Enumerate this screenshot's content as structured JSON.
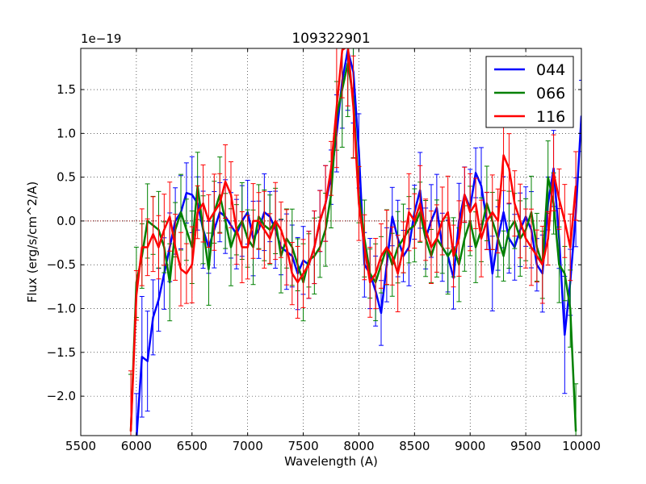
{
  "chart_data": {
    "type": "line",
    "title": "109322901",
    "xlabel": "Wavelength (A)",
    "ylabel": "Flux (erg/s/cm^2/A)",
    "offset_text": "1e−19",
    "xlim": [
      5500,
      10000
    ],
    "ylim": [
      -2.45,
      1.97
    ],
    "x_ticks": [
      5500,
      6000,
      6500,
      7000,
      7500,
      8000,
      8500,
      9000,
      9500,
      10000
    ],
    "x_tick_labels": [
      "5500",
      "6000",
      "6500",
      "7000",
      "7500",
      "8000",
      "8500",
      "9000",
      "9500",
      "10000"
    ],
    "y_ticks": [
      -2.0,
      -1.5,
      -1.0,
      -0.5,
      0.0,
      0.5,
      1.0,
      1.5
    ],
    "y_tick_labels": [
      "−2.0",
      "−1.5",
      "−1.0",
      "−0.5",
      "0.0",
      "0.5",
      "1.0",
      "1.5"
    ],
    "grid": true,
    "zero_line": 0.0,
    "legend_position": "top-right",
    "series": [
      {
        "name": "044",
        "color": "#0000ff",
        "x": [
          6000,
          6050,
          6100,
          6150,
          6200,
          6250,
          6300,
          6350,
          6400,
          6450,
          6500,
          6550,
          6600,
          6650,
          6700,
          6750,
          6800,
          6850,
          6900,
          6950,
          7000,
          7050,
          7100,
          7150,
          7200,
          7250,
          7300,
          7350,
          7400,
          7450,
          7500,
          7550,
          7600,
          7650,
          7700,
          7750,
          7800,
          7850,
          7900,
          7950,
          8000,
          8050,
          8100,
          8150,
          8200,
          8250,
          8300,
          8350,
          8400,
          8450,
          8500,
          8550,
          8600,
          8650,
          8700,
          8750,
          8800,
          8850,
          8900,
          8950,
          9000,
          9050,
          9100,
          9150,
          9200,
          9250,
          9300,
          9350,
          9400,
          9450,
          9500,
          9550,
          9600,
          9650,
          9700,
          9750,
          9800,
          9850,
          9900,
          9950,
          10000
        ],
        "y": [
          -2.5,
          -1.55,
          -1.6,
          -1.1,
          -0.9,
          -0.6,
          -0.3,
          0.0,
          0.1,
          0.32,
          0.3,
          0.2,
          -0.1,
          -0.3,
          -0.1,
          0.1,
          0.05,
          -0.05,
          -0.15,
          0.0,
          0.1,
          -0.2,
          -0.1,
          0.1,
          0.05,
          -0.1,
          -0.3,
          -0.35,
          -0.4,
          -0.6,
          -0.45,
          -0.5,
          -0.3,
          0.0,
          0.2,
          0.5,
          1.0,
          1.6,
          1.95,
          1.7,
          0.8,
          -0.5,
          -0.6,
          -0.8,
          -1.05,
          -0.5,
          0.05,
          -0.2,
          -0.4,
          -0.3,
          0.1,
          0.35,
          -0.2,
          0.0,
          0.15,
          -0.3,
          -0.4,
          -0.65,
          0.0,
          0.3,
          0.15,
          0.55,
          0.4,
          0.0,
          -0.6,
          -0.2,
          0.1,
          -0.2,
          -0.3,
          -0.1,
          0.05,
          -0.1,
          -0.5,
          -0.6,
          0.2,
          0.6,
          -0.2,
          -1.3,
          -0.7,
          0.1,
          1.2
        ]
      },
      {
        "name": "066",
        "color": "#008000",
        "x": [
          5950,
          6000,
          6050,
          6100,
          6150,
          6200,
          6250,
          6300,
          6350,
          6400,
          6450,
          6500,
          6550,
          6600,
          6650,
          6700,
          6750,
          6800,
          6850,
          6900,
          6950,
          7000,
          7050,
          7100,
          7150,
          7200,
          7250,
          7300,
          7350,
          7400,
          7450,
          7500,
          7550,
          7600,
          7650,
          7700,
          7750,
          7800,
          7850,
          7900,
          7950,
          8000,
          8050,
          8100,
          8150,
          8200,
          8250,
          8300,
          8350,
          8400,
          8450,
          8500,
          8550,
          8600,
          8650,
          8700,
          8750,
          8800,
          8850,
          8900,
          8950,
          9000,
          9050,
          9100,
          9150,
          9200,
          9250,
          9300,
          9350,
          9400,
          9450,
          9500,
          9550,
          9600,
          9650,
          9700,
          9750,
          9800,
          9850,
          9900,
          9950
        ],
        "y": [
          -2.4,
          -0.7,
          -0.4,
          0.0,
          -0.05,
          -0.1,
          -0.3,
          -0.7,
          -0.1,
          0.1,
          -0.1,
          -0.3,
          0.4,
          -0.1,
          -0.55,
          0.1,
          0.3,
          0.0,
          -0.3,
          -0.1,
          0.0,
          -0.2,
          -0.3,
          0.05,
          -0.05,
          -0.1,
          0.0,
          -0.4,
          -0.2,
          -0.3,
          -0.5,
          -0.7,
          -0.45,
          -0.4,
          -0.3,
          -0.1,
          0.3,
          1.2,
          1.5,
          1.8,
          1.4,
          0.3,
          -0.2,
          -0.6,
          -0.7,
          -0.5,
          -0.3,
          -0.5,
          -0.3,
          -0.2,
          -0.1,
          -0.05,
          0.1,
          -0.2,
          -0.4,
          -0.2,
          -0.3,
          -0.4,
          -0.3,
          -0.5,
          -0.2,
          0.0,
          -0.3,
          -0.1,
          0.2,
          0.0,
          -0.2,
          -0.4,
          -0.1,
          0.0,
          -0.2,
          -0.1,
          0.1,
          -0.3,
          -0.5,
          0.5,
          0.2,
          -0.5,
          -0.6,
          -1.0,
          -2.4
        ]
      },
      {
        "name": "116",
        "color": "#ff0000",
        "x": [
          5950,
          6000,
          6050,
          6100,
          6150,
          6200,
          6250,
          6300,
          6350,
          6400,
          6450,
          6500,
          6550,
          6600,
          6650,
          6700,
          6750,
          6800,
          6850,
          6900,
          6950,
          7000,
          7050,
          7100,
          7150,
          7200,
          7250,
          7300,
          7350,
          7400,
          7450,
          7500,
          7550,
          7600,
          7650,
          7700,
          7750,
          7800,
          7850,
          7900,
          7950,
          8000,
          8050,
          8100,
          8150,
          8200,
          8250,
          8300,
          8350,
          8400,
          8450,
          8500,
          8550,
          8600,
          8650,
          8700,
          8750,
          8800,
          8850,
          8900,
          8950,
          9000,
          9050,
          9100,
          9150,
          9200,
          9250,
          9300,
          9350,
          9400,
          9450,
          9500,
          9550,
          9600,
          9650,
          9700,
          9750,
          9800,
          9850,
          9900,
          9950
        ],
        "y": [
          -2.4,
          -0.85,
          -0.3,
          -0.3,
          -0.15,
          -0.3,
          -0.1,
          0.05,
          -0.3,
          -0.55,
          -0.6,
          -0.5,
          0.1,
          0.2,
          0.0,
          0.1,
          0.2,
          0.45,
          0.3,
          -0.1,
          -0.3,
          -0.3,
          0.0,
          0.0,
          -0.1,
          -0.2,
          0.0,
          -0.1,
          -0.3,
          -0.6,
          -0.7,
          -0.6,
          -0.5,
          -0.3,
          0.0,
          0.2,
          0.6,
          1.3,
          1.95,
          2.0,
          1.3,
          0.2,
          -0.3,
          -0.7,
          -0.6,
          -0.4,
          -0.3,
          -0.4,
          -0.6,
          -0.3,
          0.1,
          0.0,
          0.2,
          -0.1,
          -0.3,
          -0.2,
          0.0,
          0.1,
          -0.4,
          -0.2,
          0.3,
          0.1,
          0.2,
          -0.2,
          0.0,
          0.1,
          0.0,
          0.75,
          0.6,
          0.2,
          0.0,
          -0.2,
          -0.3,
          -0.4,
          -0.5,
          -0.2,
          0.55,
          0.25,
          0.0,
          -0.3,
          0.4
        ]
      }
    ]
  }
}
